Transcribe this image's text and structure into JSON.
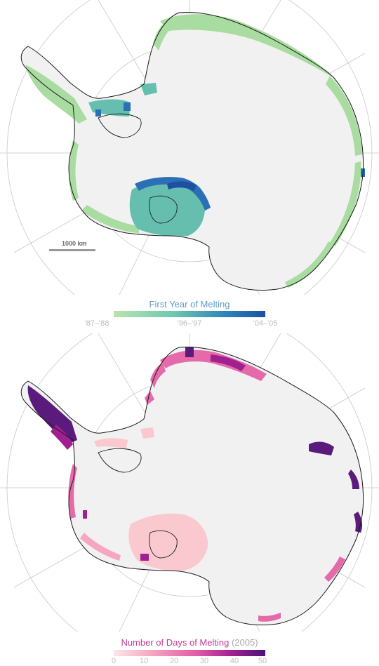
{
  "scale_bar": {
    "label": "1000 km"
  },
  "legend_top": {
    "title": "First Year of Melting",
    "ticks": [
      "'87–'88",
      "'96–'97",
      "'04–'05"
    ],
    "colors": [
      "#b9e5ae",
      "#6fc6b0",
      "#2a83b8",
      "#1f4fa0"
    ]
  },
  "legend_bottom": {
    "title": "Number of Days of Melting",
    "title_suffix": "(2005)",
    "ticks": [
      "0",
      "10",
      "20",
      "30",
      "40",
      "50"
    ],
    "colors": [
      "#fde6ea",
      "#f6a7bf",
      "#e05aa8",
      "#a1208f",
      "#4a1177"
    ]
  },
  "colors": {
    "ice": "#f1f1f1",
    "grid": "#c8c8c8",
    "coast": "#1a1a1a",
    "melt_green": "#a9dca0",
    "melt_teal": "#66bfae",
    "melt_blue": "#2b6fb5",
    "melt_pink_light": "#f9c9cf",
    "melt_pink": "#e56aa9",
    "melt_purple": "#5b1b7c"
  }
}
